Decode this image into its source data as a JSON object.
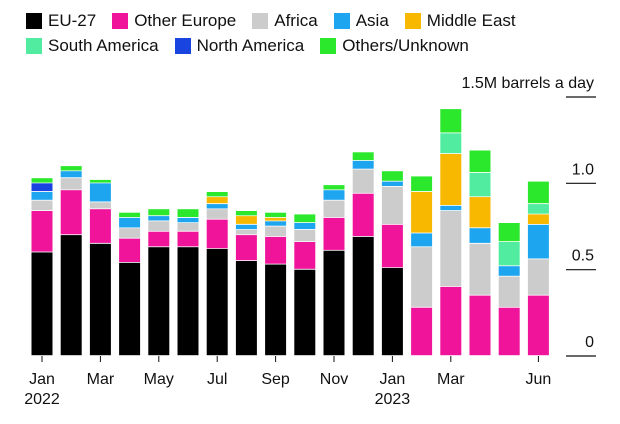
{
  "chart_data": {
    "type": "bar",
    "stacked": true,
    "unit_label": "1.5M barrels a day",
    "y_ticks": [
      {
        "value": 0,
        "label": "0"
      },
      {
        "value": 0.5,
        "label": "0.5"
      },
      {
        "value": 1.0,
        "label": "1.0"
      },
      {
        "value": 1.5,
        "label": ""
      }
    ],
    "ylim": [
      0,
      1.5
    ],
    "grid": false,
    "legend_placement": "top",
    "x_tick_labels": [
      {
        "index": 0,
        "label": "Jan",
        "year": "2022"
      },
      {
        "index": 2,
        "label": "Mar",
        "year": ""
      },
      {
        "index": 4,
        "label": "May",
        "year": ""
      },
      {
        "index": 6,
        "label": "Jul",
        "year": ""
      },
      {
        "index": 8,
        "label": "Sep",
        "year": ""
      },
      {
        "index": 10,
        "label": "Nov",
        "year": ""
      },
      {
        "index": 12,
        "label": "Jan",
        "year": "2023"
      },
      {
        "index": 14,
        "label": "Mar",
        "year": ""
      },
      {
        "index": 17,
        "label": "Jun",
        "year": ""
      }
    ],
    "categories": [
      "Jan 2022",
      "Feb 2022",
      "Mar 2022",
      "Apr 2022",
      "May 2022",
      "Jun 2022",
      "Jul 2022",
      "Aug 2022",
      "Sep 2022",
      "Oct 2022",
      "Nov 2022",
      "Dec 2022",
      "Jan 2023",
      "Feb 2023",
      "Mar 2023",
      "Apr 2023",
      "May 2023",
      "Jun 2023"
    ],
    "series": [
      {
        "name": "EU-27",
        "color": "#000000",
        "values": [
          0.6,
          0.7,
          0.65,
          0.54,
          0.63,
          0.63,
          0.62,
          0.55,
          0.53,
          0.5,
          0.61,
          0.69,
          0.51,
          0.0,
          0.0,
          0.0,
          0.0,
          0.0
        ]
      },
      {
        "name": "Other Europe",
        "color": "#f0149a",
        "values": [
          0.24,
          0.26,
          0.2,
          0.14,
          0.09,
          0.09,
          0.17,
          0.15,
          0.16,
          0.16,
          0.19,
          0.25,
          0.25,
          0.28,
          0.4,
          0.35,
          0.28,
          0.35
        ]
      },
      {
        "name": "Africa",
        "color": "#cccccc",
        "values": [
          0.06,
          0.07,
          0.04,
          0.06,
          0.06,
          0.05,
          0.06,
          0.03,
          0.06,
          0.07,
          0.1,
          0.14,
          0.22,
          0.35,
          0.44,
          0.3,
          0.18,
          0.21
        ]
      },
      {
        "name": "Asia",
        "color": "#1ea5f0",
        "values": [
          0.05,
          0.04,
          0.11,
          0.06,
          0.03,
          0.03,
          0.03,
          0.03,
          0.03,
          0.04,
          0.06,
          0.05,
          0.03,
          0.08,
          0.03,
          0.09,
          0.06,
          0.2
        ]
      },
      {
        "name": "Middle East",
        "color": "#f8b800",
        "values": [
          0.0,
          0.0,
          0.0,
          0.0,
          0.0,
          0.0,
          0.04,
          0.05,
          0.02,
          0.0,
          0.0,
          0.0,
          0.0,
          0.24,
          0.3,
          0.18,
          0.0,
          0.06
        ]
      },
      {
        "name": "South America",
        "color": "#52eca0",
        "values": [
          0.0,
          0.0,
          0.0,
          0.0,
          0.0,
          0.0,
          0.0,
          0.0,
          0.0,
          0.0,
          0.0,
          0.0,
          0.0,
          0.0,
          0.12,
          0.14,
          0.14,
          0.06
        ]
      },
      {
        "name": "North America",
        "color": "#1a44e0",
        "values": [
          0.05,
          0.0,
          0.0,
          0.0,
          0.0,
          0.0,
          0.0,
          0.0,
          0.0,
          0.0,
          0.0,
          0.0,
          0.0,
          0.0,
          0.0,
          0.0,
          0.0,
          0.0
        ]
      },
      {
        "name": "Others/Unknown",
        "color": "#2ce82c",
        "values": [
          0.03,
          0.03,
          0.02,
          0.03,
          0.04,
          0.05,
          0.03,
          0.03,
          0.03,
          0.05,
          0.03,
          0.05,
          0.06,
          0.09,
          0.14,
          0.13,
          0.11,
          0.13
        ]
      }
    ]
  }
}
